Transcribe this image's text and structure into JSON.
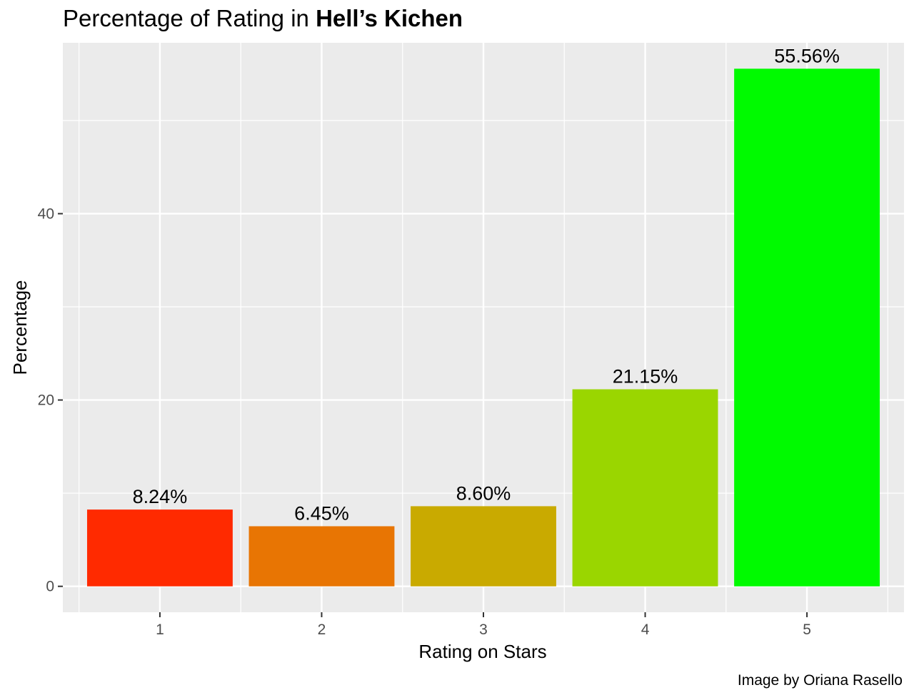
{
  "chart_data": {
    "type": "bar",
    "title_prefix": "Percentage of Rating in ",
    "title_emphasis": "Hell’s Kichen",
    "xlabel": "Rating on Stars",
    "ylabel": "Percentage",
    "categories": [
      "1",
      "2",
      "3",
      "4",
      "5"
    ],
    "values": [
      8.24,
      6.45,
      8.6,
      21.15,
      55.56
    ],
    "data_labels": [
      "8.24%",
      "6.45%",
      "8.60%",
      "21.15%",
      "55.56%"
    ],
    "bar_colors": [
      "#FF2A00",
      "#E87503",
      "#C9AA00",
      "#9AD600",
      "#00FA00"
    ],
    "y_ticks": [
      0,
      20,
      40
    ],
    "y_tick_labels": [
      "0",
      "20",
      "40"
    ],
    "ylim": [
      -2.78,
      58.34
    ],
    "grid": true,
    "background_color": "#EBEBEB",
    "grid_color": "#FFFFFF",
    "caption": "Image by Oriana Rasello"
  }
}
